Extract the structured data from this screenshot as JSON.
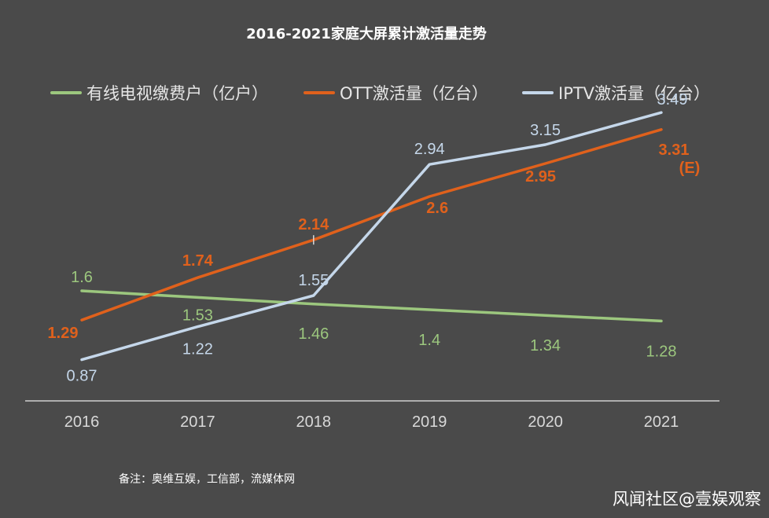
{
  "chart_data": {
    "type": "line",
    "title": "2016-2021家庭大屏累计激活量走势",
    "categories": [
      "2016",
      "2017",
      "2018",
      "2019",
      "2020",
      "2021"
    ],
    "series": [
      {
        "name": "有线电视缴费户（亿户）",
        "color": "#9cc77e",
        "values": [
          1.6,
          1.53,
          1.46,
          1.4,
          1.34,
          1.28
        ],
        "labels": [
          "1.6",
          "1.53",
          "1.46",
          "1.4",
          "1.34",
          "1.28"
        ]
      },
      {
        "name": "OTT激活量（亿台）",
        "color": "#e0611c",
        "values": [
          1.29,
          1.74,
          2.14,
          2.6,
          2.95,
          3.31
        ],
        "labels": [
          "1.29",
          "1.74",
          "2.14",
          "2.6",
          "2.95",
          "3.31"
        ]
      },
      {
        "name": "IPTV激活量（亿台）",
        "color": "#c5d7ea",
        "values": [
          0.87,
          1.22,
          1.55,
          2.94,
          3.15,
          3.49
        ],
        "labels": [
          "0.87",
          "1.22",
          "1.55",
          "2.94",
          "3.15",
          "3.49"
        ]
      }
    ],
    "annotations": [
      {
        "series": 1,
        "point": 5,
        "text": "(E)"
      }
    ],
    "xlabel": "",
    "ylabel": "",
    "ylim": [
      0.6,
      3.6
    ],
    "grid": false,
    "legend_position": "top",
    "source": "备注：奥维互娱，工信部，流媒体网"
  },
  "watermark": "风闻社区@壹娱观察",
  "colors": {
    "background": "#4a4a4a",
    "axis": "#d0d0d0"
  }
}
